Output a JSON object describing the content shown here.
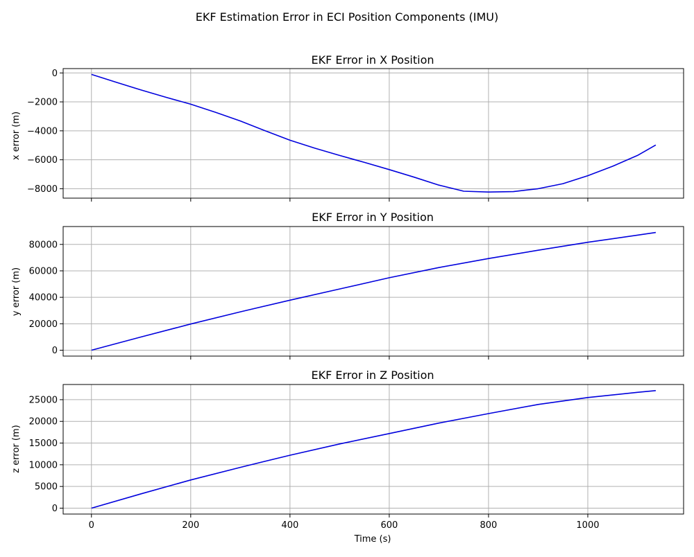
{
  "figure": {
    "suptitle": "EKF Estimation Error in ECI Position Components (IMU)"
  },
  "chart_data": [
    {
      "type": "line",
      "title": "EKF Error in X Position",
      "xlabel": "",
      "ylabel": "x error (m)",
      "xlim": [
        -57,
        1193
      ],
      "ylim": [
        -8650,
        300
      ],
      "xticks": [
        0,
        200,
        400,
        600,
        800,
        1000
      ],
      "xtick_labels_visible": false,
      "yticks": [
        0,
        -2000,
        -4000,
        -6000,
        -8000
      ],
      "ytick_labels": [
        "0",
        "−2000",
        "−4000",
        "−6000",
        "−8000"
      ],
      "grid": true,
      "series": [
        {
          "color": "#0000dd",
          "x": [
            0,
            50,
            100,
            150,
            200,
            250,
            300,
            350,
            400,
            450,
            500,
            550,
            600,
            650,
            700,
            750,
            800,
            850,
            900,
            950,
            1000,
            1050,
            1100,
            1137
          ],
          "y": [
            -100,
            -650,
            -1180,
            -1680,
            -2160,
            -2720,
            -3320,
            -4000,
            -4650,
            -5200,
            -5700,
            -6180,
            -6680,
            -7200,
            -7750,
            -8170,
            -8230,
            -8200,
            -8000,
            -7650,
            -7100,
            -6450,
            -5700,
            -4980
          ]
        }
      ]
    },
    {
      "type": "line",
      "title": "EKF Error in Y Position",
      "xlabel": "",
      "ylabel": "y error (m)",
      "xlim": [
        -57,
        1193
      ],
      "ylim": [
        -4450,
        93500
      ],
      "xticks": [
        0,
        200,
        400,
        600,
        800,
        1000
      ],
      "xtick_labels_visible": false,
      "yticks": [
        0,
        20000,
        40000,
        60000,
        80000
      ],
      "ytick_labels": [
        "0",
        "20000",
        "40000",
        "60000",
        "80000"
      ],
      "grid": true,
      "series": [
        {
          "color": "#0000dd",
          "x": [
            0,
            100,
            200,
            300,
            400,
            500,
            600,
            700,
            800,
            900,
            1000,
            1100,
            1137
          ],
          "y": [
            0,
            10000,
            19800,
            29000,
            37800,
            46300,
            54800,
            62500,
            69300,
            75600,
            81600,
            87000,
            89000
          ]
        }
      ]
    },
    {
      "type": "line",
      "title": "EKF Error in Z Position",
      "xlabel": "Time (s)",
      "ylabel": "z error (m)",
      "xlim": [
        -57,
        1193
      ],
      "ylim": [
        -1360,
        28500
      ],
      "xticks": [
        0,
        200,
        400,
        600,
        800,
        1000
      ],
      "xtick_labels_visible": true,
      "xtick_labels": [
        "0",
        "200",
        "400",
        "600",
        "800",
        "1000"
      ],
      "yticks": [
        0,
        5000,
        10000,
        15000,
        20000,
        25000
      ],
      "ytick_labels": [
        "0",
        "5000",
        "10000",
        "15000",
        "20000",
        "25000"
      ],
      "grid": true,
      "series": [
        {
          "color": "#0000dd",
          "x": [
            0,
            100,
            200,
            300,
            400,
            500,
            600,
            700,
            800,
            900,
            1000,
            1100,
            1137
          ],
          "y": [
            0,
            3300,
            6500,
            9400,
            12200,
            14800,
            17200,
            19600,
            21800,
            23900,
            25500,
            26700,
            27100
          ]
        }
      ]
    }
  ]
}
